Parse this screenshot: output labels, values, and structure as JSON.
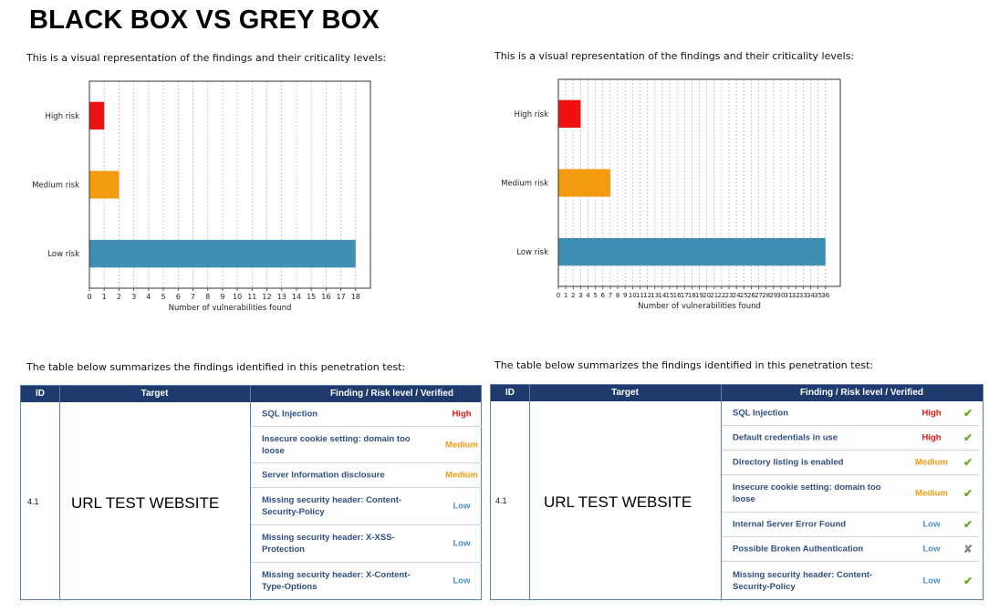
{
  "title": "BLACK BOX VS GREY BOX",
  "colors": {
    "high": "#ee1111",
    "medium": "#f39a0f",
    "low": "#3f8fb4",
    "header_bg": "#1f3b6e",
    "verified": "#6aaa2a",
    "not_verified": "#888888",
    "risk_low_text": "#4b8fbf"
  },
  "left": {
    "intro": "This is a visual representation of the findings and their criticality levels:",
    "chart_data": {
      "type": "bar",
      "orientation": "horizontal",
      "categories": [
        "High risk",
        "Medium risk",
        "Low risk"
      ],
      "values": [
        1,
        2,
        18
      ],
      "colors": [
        "#ee1111",
        "#f39a0f",
        "#3f8fb4"
      ],
      "xlabel": "Number of vulnerabilities found",
      "xlim": [
        0,
        19
      ],
      "xticks": [
        0,
        1,
        2,
        3,
        4,
        5,
        6,
        7,
        8,
        9,
        10,
        11,
        12,
        13,
        14,
        15,
        16,
        17,
        18
      ],
      "grid": "vertical-dashed"
    },
    "table_intro": "The table below summarizes the findings identified in this penetration test:",
    "table": {
      "headers": {
        "id": "ID",
        "target": "Target",
        "finding": "Finding  /  Risk level  /  Verified"
      },
      "id": "4.1",
      "target": "URL TEST WEBSITE",
      "rows": [
        {
          "finding": "SQL Injection",
          "risk": "High",
          "level": "high"
        },
        {
          "finding": "Insecure cookie setting: domain too loose",
          "risk": "Medium",
          "level": "medium"
        },
        {
          "finding": "Server Information disclosure",
          "risk": "Medium",
          "level": "medium"
        },
        {
          "finding": "Missing security header: Content-Security-Policy",
          "risk": "Low",
          "level": "low"
        },
        {
          "finding": "Missing security header: X-XSS-Protection",
          "risk": "Low",
          "level": "low"
        },
        {
          "finding": "Missing security header: X-Content-Type-Options",
          "risk": "Low",
          "level": "low"
        }
      ]
    }
  },
  "right": {
    "intro": "This is a visual representation of the findings and their criticality levels:",
    "chart_data": {
      "type": "bar",
      "orientation": "horizontal",
      "categories": [
        "High risk",
        "Medium risk",
        "Low risk"
      ],
      "values": [
        3,
        7,
        36
      ],
      "colors": [
        "#ee1111",
        "#f39a0f",
        "#3f8fb4"
      ],
      "xlabel": "Number of vulnerabilities found",
      "xlim": [
        0,
        38
      ],
      "xticks": [
        0,
        1,
        2,
        3,
        4,
        5,
        6,
        7,
        8,
        9,
        10,
        11,
        12,
        13,
        14,
        15,
        16,
        17,
        18,
        19,
        20,
        21,
        22,
        23,
        24,
        25,
        26,
        27,
        28,
        29,
        30,
        31,
        32,
        33,
        34,
        35,
        36
      ],
      "grid": "vertical-dashed"
    },
    "table_intro": "The table below summarizes the findings identified in this penetration test:",
    "table": {
      "headers": {
        "id": "ID",
        "target": "Target",
        "finding": "Finding  /  Risk level  /  Verified"
      },
      "id": "4.1",
      "target": "URL TEST WEBSITE",
      "rows": [
        {
          "finding": "SQL Injection",
          "risk": "High",
          "level": "high",
          "verified": "✔"
        },
        {
          "finding": "Default credentials in use",
          "risk": "High",
          "level": "high",
          "verified": "✔"
        },
        {
          "finding": "Directory listing is enabled",
          "risk": "Medium",
          "level": "medium",
          "verified": "✔"
        },
        {
          "finding": "Insecure cookie setting: domain too loose",
          "risk": "Medium",
          "level": "medium",
          "verified": "✔"
        },
        {
          "finding": "Internal Server Error Found",
          "risk": "Low",
          "level": "low",
          "verified": "✔"
        },
        {
          "finding": "Possible Broken Authentication",
          "risk": "Low",
          "level": "low",
          "verified": "✘"
        },
        {
          "finding": "Missing security header: Content-Security-Policy",
          "risk": "Low",
          "level": "low",
          "verified": "✔"
        }
      ]
    }
  }
}
